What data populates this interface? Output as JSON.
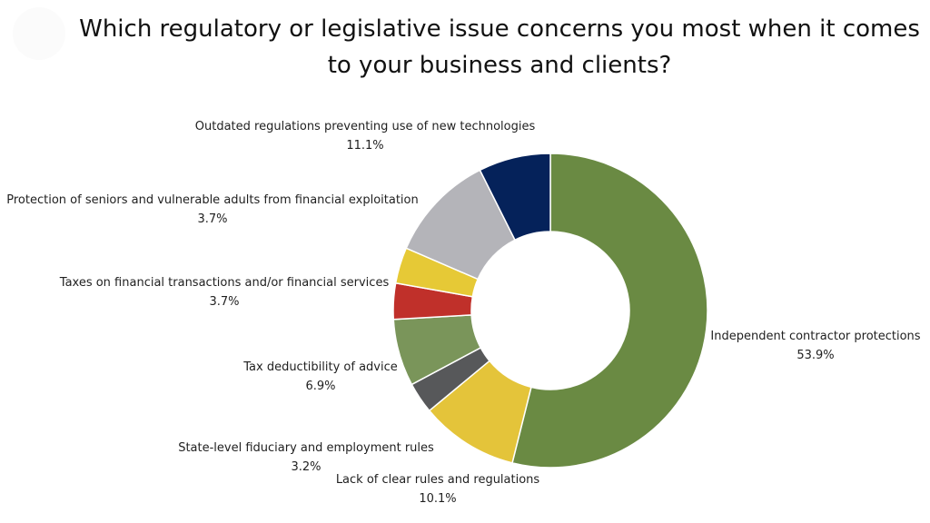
{
  "chart_data": {
    "type": "pie",
    "title_lines": [
      "Which regulatory or legislative issue concerns you most when it comes",
      "to your business and clients?"
    ],
    "slices": [
      {
        "label": "Independent contractor protections",
        "value": 53.9,
        "value_label": "53.9%",
        "color": "#6a8a43"
      },
      {
        "label": "Lack of clear rules and regulations",
        "value": 10.1,
        "value_label": "10.1%",
        "color": "#e4c43a"
      },
      {
        "label": "State-level fiduciary and employment rules",
        "value": 3.2,
        "value_label": "3.2%",
        "color": "#57585a"
      },
      {
        "label": "Tax deductibility of advice",
        "value": 6.9,
        "value_label": "6.9%",
        "color": "#7a955a"
      },
      {
        "label": "Taxes on financial transactions and/or financial services",
        "value": 3.7,
        "value_label": "3.7%",
        "color": "#c0302a"
      },
      {
        "label": "Protection of seniors and vulnerable adults from financial exploitation",
        "value": 3.7,
        "value_label": "3.7%",
        "color": "#e6c936"
      },
      {
        "label": "Outdated regulations preventing use of new technologies",
        "value": 11.1,
        "value_label": "11.1%",
        "color": "#b4b4b9"
      },
      {
        "label": "",
        "value": 7.4,
        "value_label": "",
        "color": "#05225a"
      }
    ],
    "donut": true
  }
}
